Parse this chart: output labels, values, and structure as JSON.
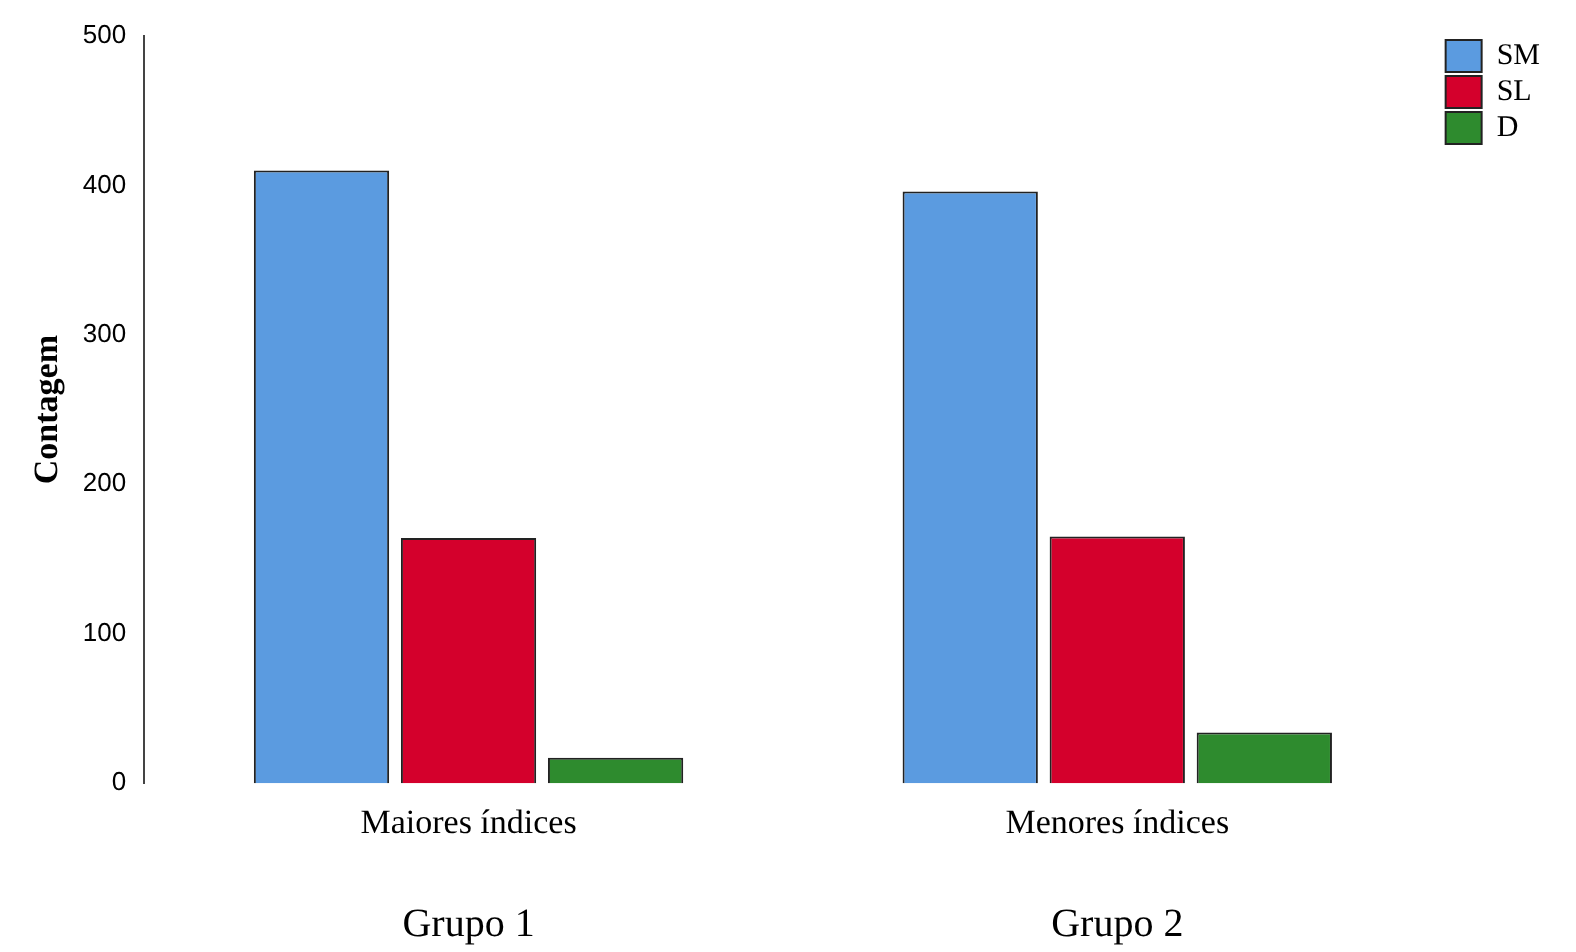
{
  "chart_data": {
    "type": "bar",
    "ylabel": "Contagem",
    "categories": [
      "Maiores índices",
      "Menores índices"
    ],
    "series": [
      {
        "name": "SM",
        "color": "#5b9be0",
        "values": [
          410,
          396
        ]
      },
      {
        "name": "SL",
        "color": "#d4002c",
        "values": [
          164,
          165
        ]
      },
      {
        "name": "D",
        "color": "#2e8b2e",
        "values": [
          17,
          34
        ]
      }
    ],
    "ylim": [
      0,
      500
    ],
    "yticks": [
      0,
      100,
      200,
      300,
      400,
      500
    ],
    "grid": false,
    "legend": "top right",
    "annotations": [
      "Grupo 1",
      "Grupo 2"
    ]
  }
}
